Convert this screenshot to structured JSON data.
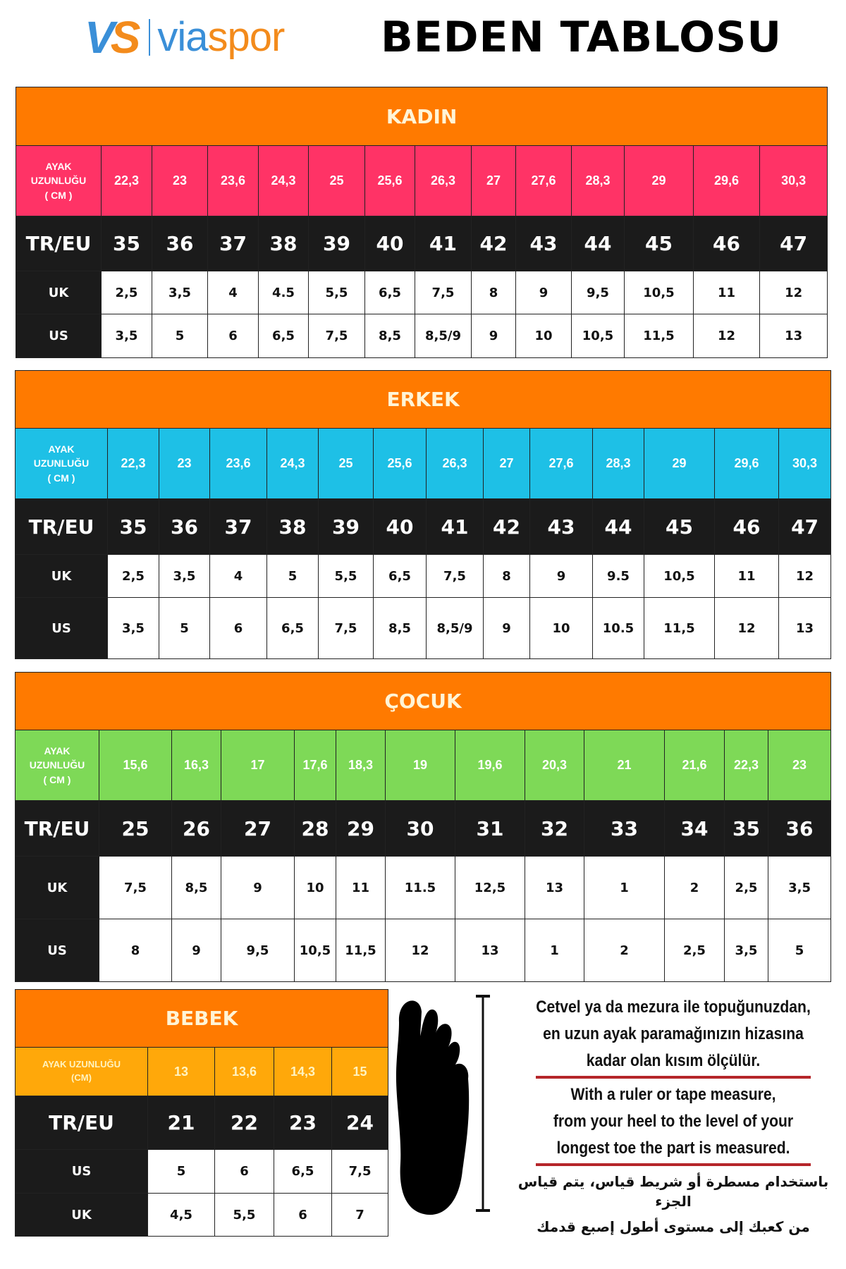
{
  "header": {
    "logo_mark": "VS",
    "brand_part1": "via",
    "brand_part2": "spor",
    "title": "BEDEN TABLOSU"
  },
  "colors": {
    "orange": "#ff7a00",
    "pink": "#ff3366",
    "cyan": "#1ec0e6",
    "green": "#7ed957",
    "amber": "#ffa80a",
    "dark": "#1b1b1b"
  },
  "tables": [
    {
      "title": "KADIN",
      "cm_label": [
        "AYAK",
        "UZUNLUĞU",
        "( CM )"
      ],
      "cm": [
        "22,3",
        "23",
        "23,6",
        "24,3",
        "25",
        "25,6",
        "26,3",
        "27",
        "27,6",
        "28,3",
        "29",
        "29,6",
        "30,3"
      ],
      "rows": [
        {
          "label": "TR/EU",
          "values": [
            "35",
            "36",
            "37",
            "38",
            "39",
            "40",
            "41",
            "42",
            "43",
            "44",
            "45",
            "46",
            "47"
          ]
        },
        {
          "label": "UK",
          "values": [
            "2,5",
            "3,5",
            "4",
            "4.5",
            "5,5",
            "6,5",
            "7,5",
            "8",
            "9",
            "9,5",
            "10,5",
            "11",
            "12"
          ]
        },
        {
          "label": "US",
          "values": [
            "3,5",
            "5",
            "6",
            "6,5",
            "7,5",
            "8,5",
            "8,5/9",
            "9",
            "10",
            "10,5",
            "11,5",
            "12",
            "13"
          ]
        }
      ]
    },
    {
      "title": "ERKEK",
      "cm_label": [
        "AYAK",
        "UZUNLUĞU",
        "( CM )"
      ],
      "cm": [
        "22,3",
        "23",
        "23,6",
        "24,3",
        "25",
        "25,6",
        "26,3",
        "27",
        "27,6",
        "28,3",
        "29",
        "29,6",
        "30,3"
      ],
      "rows": [
        {
          "label": "TR/EU",
          "values": [
            "35",
            "36",
            "37",
            "38",
            "39",
            "40",
            "41",
            "42",
            "43",
            "44",
            "45",
            "46",
            "47"
          ]
        },
        {
          "label": "UK",
          "values": [
            "2,5",
            "3,5",
            "4",
            "5",
            "5,5",
            "6,5",
            "7,5",
            "8",
            "9",
            "9.5",
            "10,5",
            "11",
            "12"
          ]
        },
        {
          "label": "US",
          "values": [
            "3,5",
            "5",
            "6",
            "6,5",
            "7,5",
            "8,5",
            "8,5/9",
            "9",
            "10",
            "10.5",
            "11,5",
            "12",
            "13"
          ]
        }
      ]
    },
    {
      "title": "ÇOCUK",
      "cm_label": [
        "AYAK",
        "UZUNLUĞU",
        "( CM )"
      ],
      "cm": [
        "15,6",
        "16,3",
        "17",
        "17,6",
        "18,3",
        "19",
        "19,6",
        "20,3",
        "21",
        "21,6",
        "22,3",
        "23"
      ],
      "rows": [
        {
          "label": "TR/EU",
          "values": [
            "25",
            "26",
            "27",
            "28",
            "29",
            "30",
            "31",
            "32",
            "33",
            "34",
            "35",
            "36"
          ]
        },
        {
          "label": "UK",
          "values": [
            "7,5",
            "8,5",
            "9",
            "10",
            "11",
            "11.5",
            "12,5",
            "13",
            "1",
            "2",
            "2,5",
            "3,5"
          ]
        },
        {
          "label": "US",
          "values": [
            "8",
            "9",
            "9,5",
            "10,5",
            "11,5",
            "12",
            "13",
            "1",
            "2",
            "2,5",
            "3,5",
            "5"
          ]
        }
      ]
    },
    {
      "title": "BEBEK",
      "cm_label": [
        "AYAK UZUNLUĞU",
        "(CM)"
      ],
      "cm": [
        "13",
        "13,6",
        "14,3",
        "15"
      ],
      "rows": [
        {
          "label": "TR/EU",
          "values": [
            "21",
            "22",
            "23",
            "24"
          ]
        },
        {
          "label": "US",
          "values": [
            "5",
            "6",
            "6,5",
            "7,5"
          ]
        },
        {
          "label": "UK",
          "values": [
            "4,5",
            "5,5",
            "6",
            "7"
          ]
        }
      ]
    }
  ],
  "instructions": {
    "tr": [
      "Cetvel ya da mezura ile topuğunuzdan,",
      "en uzun ayak paramağınızın hizasına",
      "kadar olan kısım ölçülür."
    ],
    "en": [
      "With a ruler or tape measure,",
      "from your heel to the level of your",
      "longest toe the part is measured."
    ],
    "ar": [
      "باستخدام مسطرة أو شريط قياس، يتم قياس الجزء",
      "من كعبك إلى مستوى أطول إصبع قدمك"
    ]
  }
}
